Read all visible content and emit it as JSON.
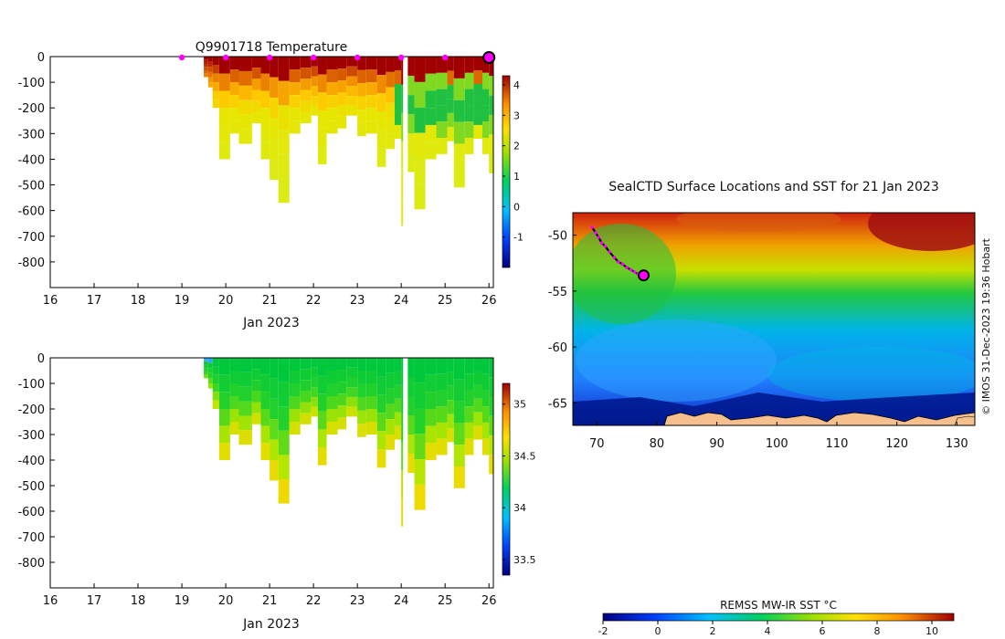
{
  "chart_data": [
    {
      "type": "heatmap",
      "panel": "temperature-section",
      "title": "Q9901718  Temperature",
      "xlabel": "Jan 2023",
      "ylabel": "",
      "x_ticks": [
        "16",
        "17",
        "18",
        "19",
        "20",
        "21",
        "22",
        "23",
        "24",
        "25",
        "26"
      ],
      "xlim": [
        16,
        26.1
      ],
      "y_ticks": [
        "0",
        "-100",
        "-200",
        "-300",
        "-400",
        "-500",
        "-600",
        "-700",
        "-800"
      ],
      "ylim": [
        -900,
        0
      ],
      "surface_markers_day": [
        19,
        20,
        21,
        22,
        23,
        24,
        25
      ],
      "current_marker_day": 26,
      "colorbar": {
        "ticks": [
          "4",
          "3",
          "2",
          "1",
          "0",
          "-1"
        ],
        "range": [
          -2,
          4.3
        ]
      },
      "profiles": [
        {
          "day": 19.5,
          "max_depth": 80
        },
        {
          "day": 19.6,
          "max_depth": 120
        },
        {
          "day": 19.7,
          "max_depth": 200
        },
        {
          "day": 19.85,
          "max_depth": 400
        },
        {
          "day": 20.1,
          "max_depth": 300
        },
        {
          "day": 20.3,
          "max_depth": 340
        },
        {
          "day": 20.6,
          "max_depth": 260
        },
        {
          "day": 20.8,
          "max_depth": 400
        },
        {
          "day": 21.0,
          "max_depth": 480
        },
        {
          "day": 21.2,
          "max_depth": 570
        },
        {
          "day": 21.45,
          "max_depth": 300
        },
        {
          "day": 21.7,
          "max_depth": 260
        },
        {
          "day": 21.95,
          "max_depth": 230
        },
        {
          "day": 22.1,
          "max_depth": 420
        },
        {
          "day": 22.3,
          "max_depth": 300
        },
        {
          "day": 22.55,
          "max_depth": 280
        },
        {
          "day": 22.75,
          "max_depth": 230
        },
        {
          "day": 23.0,
          "max_depth": 310
        },
        {
          "day": 23.2,
          "max_depth": 300
        },
        {
          "day": 23.45,
          "max_depth": 430
        },
        {
          "day": 23.65,
          "max_depth": 360
        },
        {
          "day": 23.85,
          "max_depth": 320
        },
        {
          "day": 24.0,
          "max_depth": 660
        },
        {
          "day": 24.15,
          "max_depth": 450
        },
        {
          "day": 24.3,
          "max_depth": 595
        },
        {
          "day": 24.55,
          "max_depth": 400
        },
        {
          "day": 24.8,
          "max_depth": 380
        },
        {
          "day": 25.05,
          "max_depth": 330
        },
        {
          "day": 25.2,
          "max_depth": 510
        },
        {
          "day": 25.45,
          "max_depth": 380
        },
        {
          "day": 25.65,
          "max_depth": 320
        },
        {
          "day": 25.85,
          "max_depth": 380
        },
        {
          "day": 26.0,
          "max_depth": 455
        }
      ]
    },
    {
      "type": "heatmap",
      "panel": "salinity-section",
      "title": "",
      "xlabel": "Jan 2023",
      "ylabel": "",
      "x_ticks": [
        "16",
        "17",
        "18",
        "19",
        "20",
        "21",
        "22",
        "23",
        "24",
        "25",
        "26"
      ],
      "xlim": [
        16,
        26.1
      ],
      "y_ticks": [
        "0",
        "-100",
        "-200",
        "-300",
        "-400",
        "-500",
        "-600",
        "-700",
        "-800"
      ],
      "ylim": [
        -900,
        0
      ],
      "colorbar": {
        "ticks": [
          "35",
          "34.5",
          "34",
          "33.5"
        ],
        "range": [
          33.35,
          35.2
        ]
      }
    },
    {
      "type": "heatmap",
      "panel": "sst-map",
      "title": "SealCTD Surface Locations and SST for 21 Jan 2023",
      "x_ticks": [
        "70",
        "80",
        "90",
        "100",
        "110",
        "120",
        "130"
      ],
      "xlim": [
        66,
        133
      ],
      "y_ticks": [
        "-50",
        "-55",
        "-60",
        "-65"
      ],
      "ylim": [
        -67,
        -48
      ],
      "track_points": [
        [
          69.2,
          -49.3
        ],
        [
          69.8,
          -49.8
        ],
        [
          70.3,
          -50.2
        ],
        [
          70.8,
          -50.7
        ],
        [
          71.4,
          -51.0
        ],
        [
          72.1,
          -51.5
        ],
        [
          72.9,
          -52.0
        ],
        [
          73.6,
          -52.4
        ],
        [
          74.3,
          -52.6
        ],
        [
          75.0,
          -52.9
        ],
        [
          75.7,
          -53.1
        ],
        [
          76.3,
          -53.3
        ],
        [
          76.9,
          -53.5
        ]
      ],
      "current_position": [
        77.8,
        -53.6
      ],
      "colorbar": {
        "label": "REMSS MW-IR SST °C",
        "ticks": [
          "-2",
          "0",
          "2",
          "4",
          "6",
          "8",
          "10"
        ],
        "range": [
          -2,
          10.8
        ]
      },
      "credit": "© IMOS 31-Dec-2023 19:36 Hobart"
    }
  ],
  "colors": {
    "marker": "#ff00ff",
    "land": "#f5c08e",
    "axis": "#000000"
  }
}
